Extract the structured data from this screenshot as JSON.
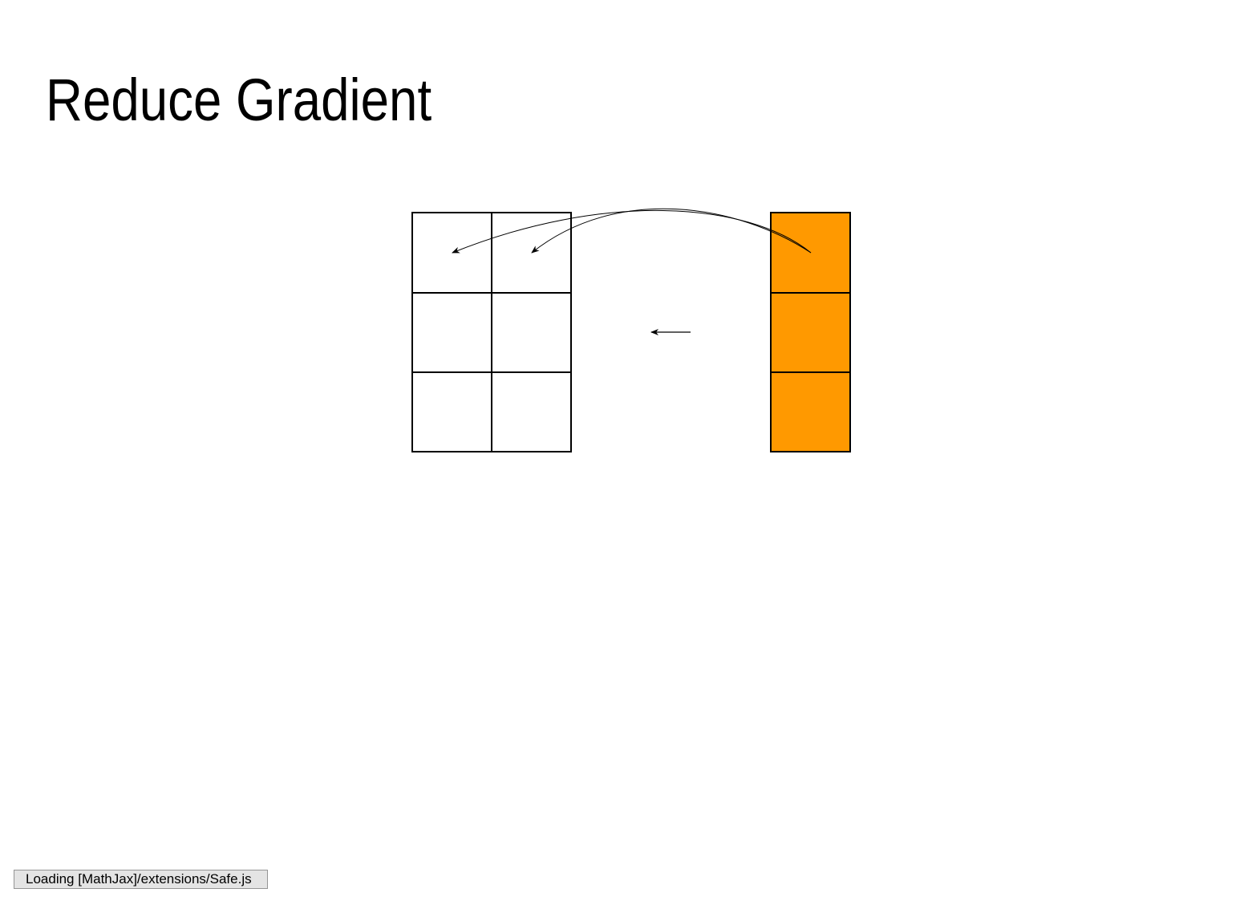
{
  "slide": {
    "title": "Reduce Gradient"
  },
  "diagram": {
    "left_matrix": {
      "rows": 3,
      "cols": 2,
      "fill": "#ffffff",
      "stroke": "#000000"
    },
    "right_vector": {
      "rows": 3,
      "cols": 1,
      "fill": "#ff9900",
      "stroke": "#000000"
    },
    "arrows": {
      "middle": "right-to-left",
      "curved_from_vector_top_to_matrix_row1": 2
    }
  },
  "status": {
    "text": "Loading [MathJax]/extensions/Safe.js"
  },
  "colors": {
    "accent_orange": "#ff9900",
    "status_bg": "#e4e4e4",
    "status_border": "#959595"
  }
}
